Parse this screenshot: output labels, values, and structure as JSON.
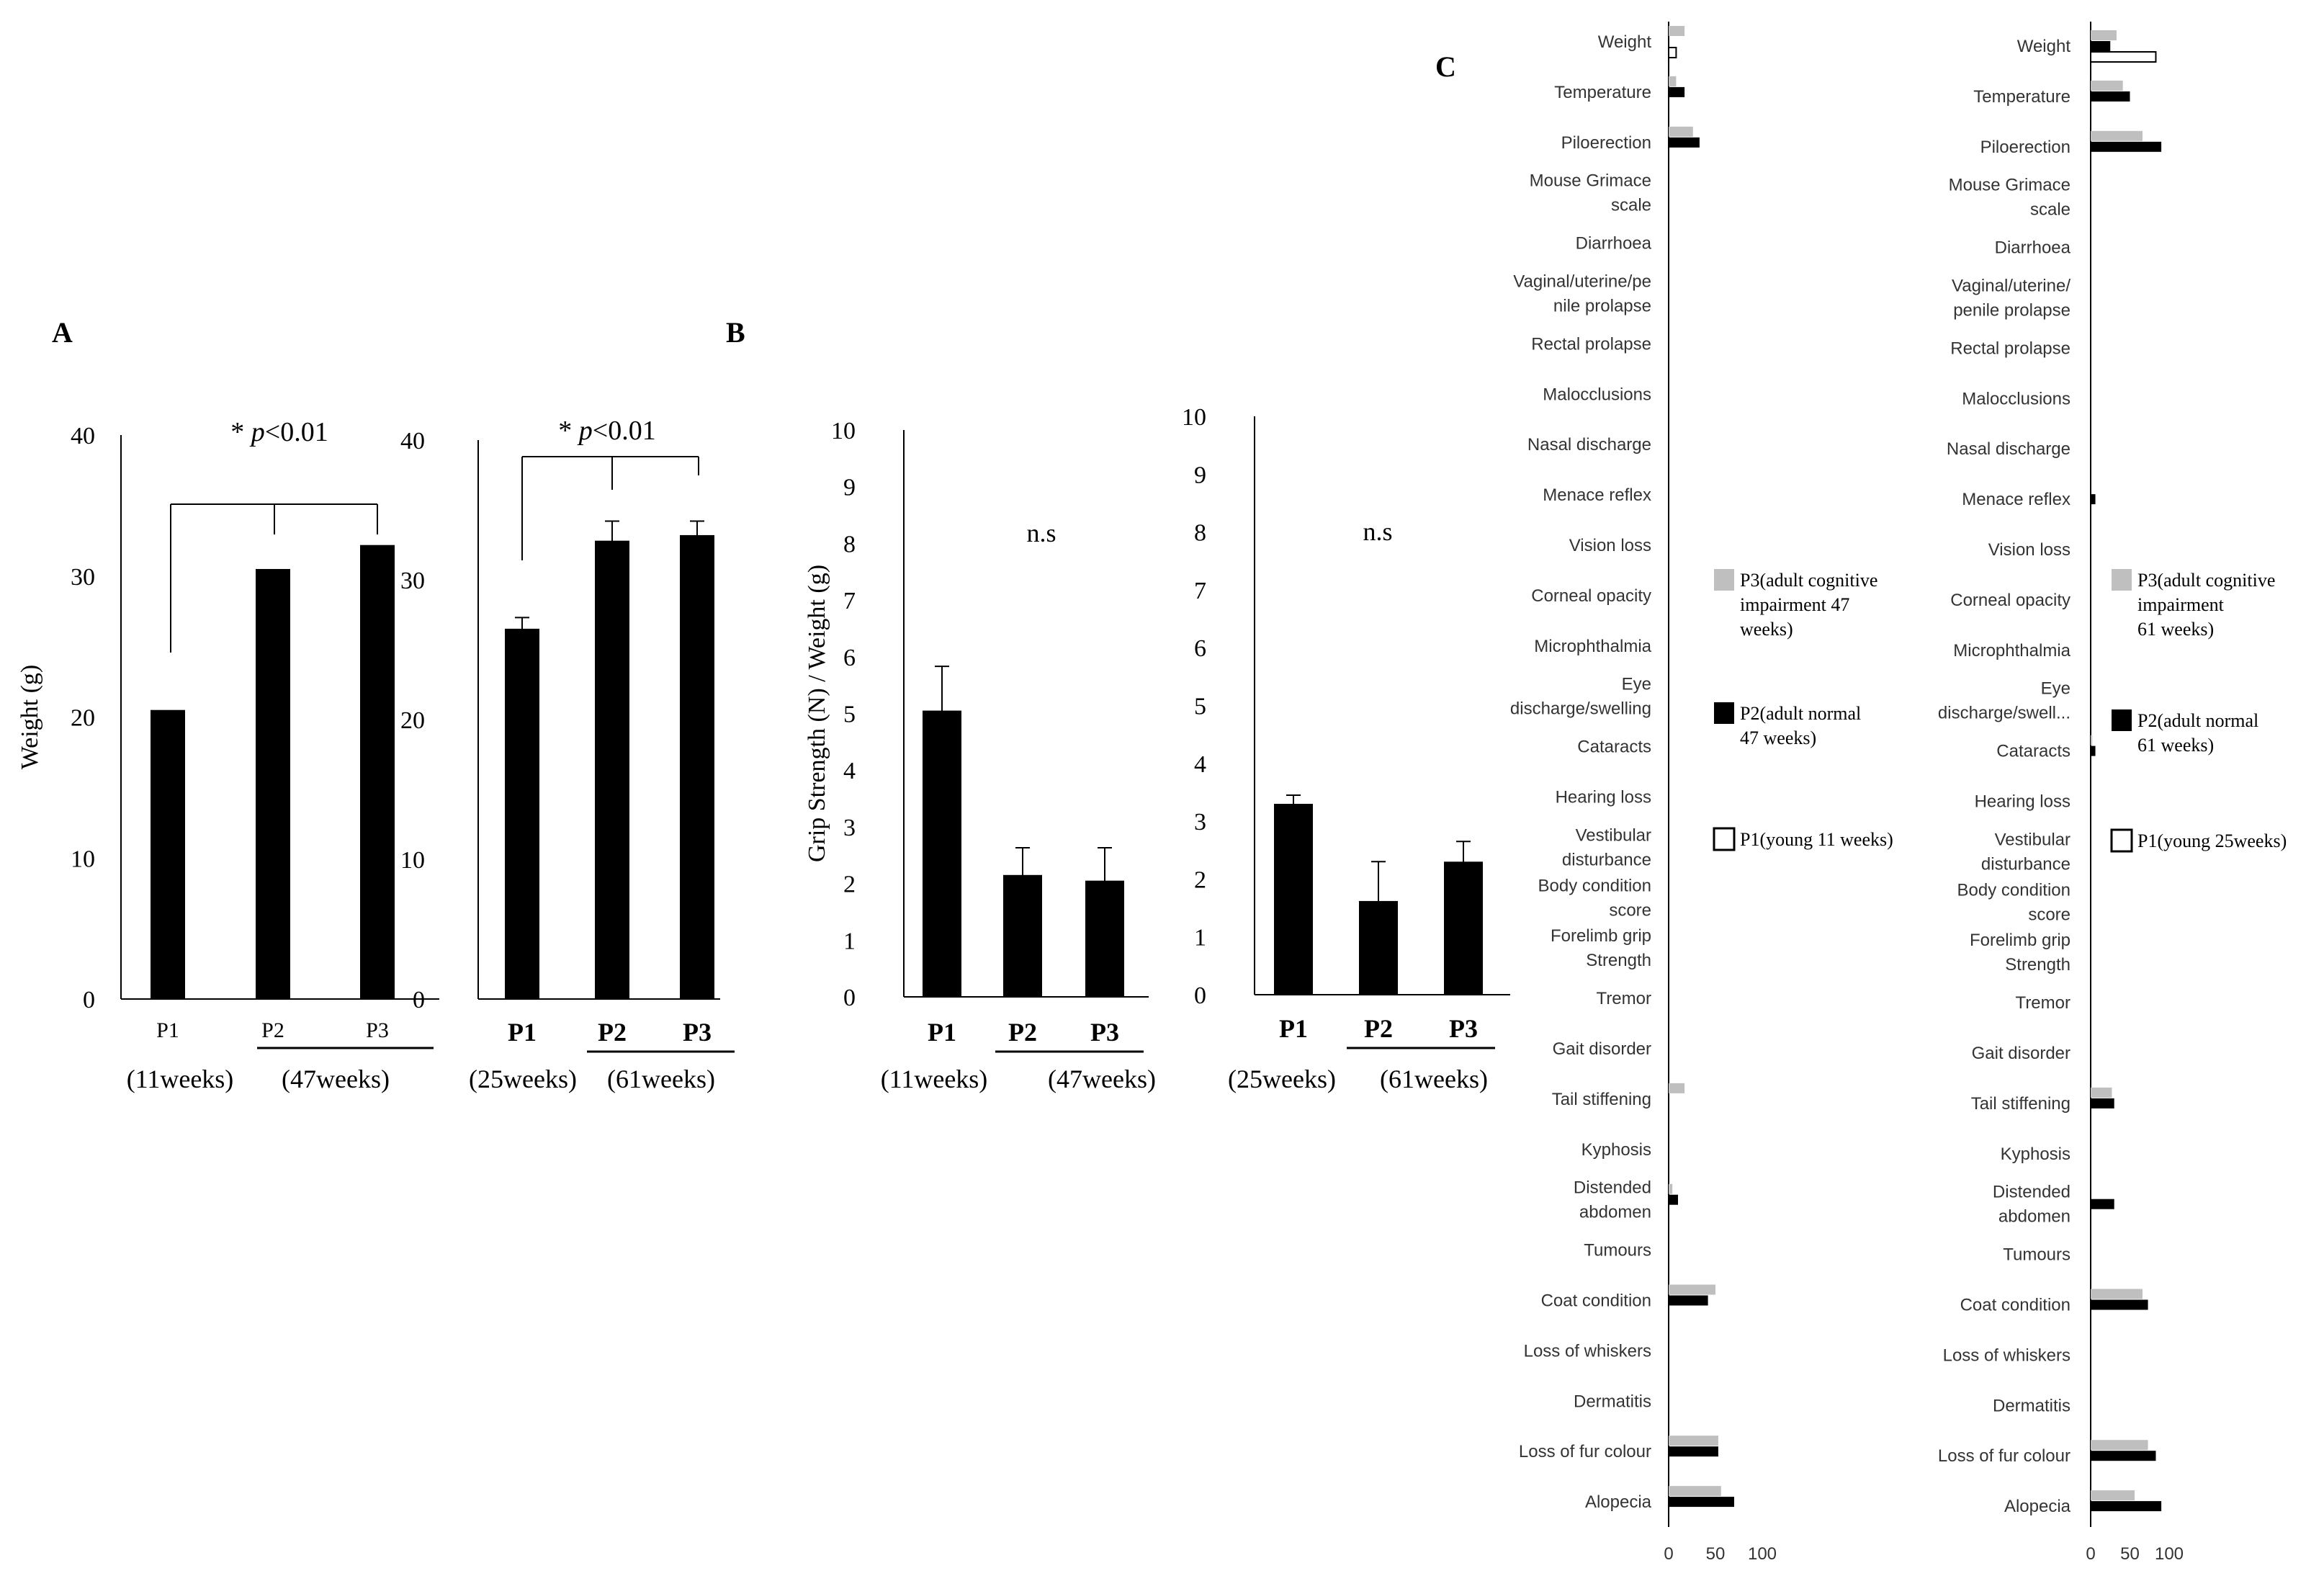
{
  "colors": {
    "p1": "#ffffff",
    "p2": "#000000",
    "p3": "#bfbfbf",
    "axis": "#000000",
    "sans_text": "#333333"
  },
  "panels": {
    "A": "A",
    "B": "B",
    "C": "C"
  },
  "chart_data": [
    {
      "id": "A-left",
      "type": "bar",
      "ylabel": "Weight (g)",
      "ylim": [
        0,
        40
      ],
      "yticks": [
        0,
        10,
        20,
        30,
        40
      ],
      "categories": [
        "P1",
        "P2",
        "P3"
      ],
      "values": [
        20.5,
        30.5,
        32.2
      ],
      "errors": [
        0,
        0,
        0
      ],
      "groups": [
        "(11weeks)",
        "(47weeks)"
      ],
      "annotation": {
        "star": "*",
        "p": "p",
        "rest": "<0.01"
      }
    },
    {
      "id": "A-right",
      "type": "bar",
      "ylim": [
        0,
        40
      ],
      "yticks": [
        0,
        10,
        20,
        30,
        40
      ],
      "categories": [
        "P1",
        "P2",
        "P3"
      ],
      "values": [
        26.5,
        32.8,
        33.2
      ],
      "errors": [
        0.8,
        1.4,
        1.0
      ],
      "groups": [
        "(25weeks)",
        "(61weeks)"
      ],
      "annotation": {
        "star": "*",
        "p": "p",
        "rest": "<0.01"
      }
    },
    {
      "id": "B-left",
      "type": "bar",
      "ylabel": "Grip Strength (N) / Weight (g)",
      "ylim": [
        0,
        10
      ],
      "yticks": [
        0,
        1,
        2,
        3,
        4,
        5,
        6,
        7,
        8,
        9,
        10
      ],
      "categories": [
        "P1",
        "P2",
        "P3"
      ],
      "values": [
        5.05,
        2.15,
        2.05
      ],
      "errors": [
        0.78,
        0.48,
        0.58
      ],
      "groups": [
        "(11weeks)",
        "(47weeks)"
      ],
      "annotation": {
        "text": "n.s"
      }
    },
    {
      "id": "B-right",
      "type": "bar",
      "ylim": [
        0,
        10
      ],
      "yticks": [
        0,
        1,
        2,
        3,
        4,
        5,
        6,
        7,
        8,
        9,
        10
      ],
      "categories": [
        "P1",
        "P2",
        "P3"
      ],
      "values": [
        3.3,
        1.62,
        2.3
      ],
      "errors": [
        0.15,
        0.68,
        0.35
      ],
      "groups": [
        "(25weeks)",
        "(61weeks)"
      ],
      "annotation": {
        "text": "n.s"
      }
    },
    {
      "id": "C-left",
      "type": "bar",
      "orientation": "horizontal",
      "xlim": [
        0,
        100
      ],
      "xticks": [
        0,
        50,
        100
      ],
      "categories": [
        [
          "Weight"
        ],
        [
          "Temperature"
        ],
        [
          "Piloerection"
        ],
        [
          "Mouse Grimace",
          "scale"
        ],
        [
          "Diarrhoea"
        ],
        [
          "Vaginal/uterine/pe",
          "nile prolapse"
        ],
        [
          "Rectal prolapse"
        ],
        [
          "Malocclusions"
        ],
        [
          "Nasal discharge"
        ],
        [
          "Menace reflex"
        ],
        [
          "Vision loss"
        ],
        [
          "Corneal opacity"
        ],
        [
          "Microphthalmia"
        ],
        [
          "Eye",
          "discharge/swelling"
        ],
        [
          "Cataracts"
        ],
        [
          "Hearing loss"
        ],
        [
          "Vestibular",
          "disturbance"
        ],
        [
          "Body condition",
          "score"
        ],
        [
          "Forelimb grip",
          "Strength"
        ],
        [
          "Tremor"
        ],
        [
          "Gait disorder"
        ],
        [
          "Tail stiffening"
        ],
        [
          "Kyphosis"
        ],
        [
          "Distended",
          "abdomen"
        ],
        [
          "Tumours"
        ],
        [
          "Coat condition"
        ],
        [
          "Loss of whiskers"
        ],
        [
          "Dermatitis"
        ],
        [
          "Loss of fur colour"
        ],
        [
          "Alopecia"
        ]
      ],
      "series": [
        {
          "name": "P3(adult cognitive impairment 47 weeks)",
          "legend_lines": [
            "P3(adult cognitive",
            "impairment 47",
            "weeks)"
          ],
          "color": "#bfbfbf",
          "values": [
            17,
            8,
            26,
            0,
            0,
            0,
            0,
            0,
            0,
            0,
            0,
            0,
            0,
            0,
            0,
            0,
            0,
            0,
            0,
            0,
            0,
            17,
            0,
            4,
            0,
            50,
            0,
            0,
            53,
            56
          ]
        },
        {
          "name": "P2(adult normal 47 weeks)",
          "legend_lines": [
            "P2(adult normal",
            "47 weeks)"
          ],
          "color": "#000000",
          "values": [
            0,
            17,
            33,
            0,
            0,
            0,
            0,
            0,
            0,
            0,
            0,
            0,
            0,
            0,
            0,
            0,
            0,
            0,
            0,
            0,
            0,
            0,
            0,
            10,
            0,
            42,
            0,
            0,
            53,
            70
          ]
        },
        {
          "name": "P1(young 11 weeks)",
          "legend_lines": [
            "P1(young 11 weeks)"
          ],
          "color": "#ffffff",
          "values": [
            8,
            0,
            0,
            0,
            0,
            0,
            0,
            0,
            0,
            0,
            0,
            0,
            0,
            0,
            0,
            0,
            0,
            0,
            0,
            0,
            0,
            0,
            0,
            0,
            0,
            0,
            0,
            0,
            0,
            0
          ]
        }
      ]
    },
    {
      "id": "C-right",
      "type": "bar",
      "orientation": "horizontal",
      "xlim": [
        0,
        100
      ],
      "xticks": [
        0,
        50,
        100
      ],
      "categories": [
        [
          "Weight"
        ],
        [
          "Temperature"
        ],
        [
          "Piloerection"
        ],
        [
          "Mouse Grimace",
          "scale"
        ],
        [
          "Diarrhoea"
        ],
        [
          "Vaginal/uterine/",
          "penile prolapse"
        ],
        [
          "Rectal prolapse"
        ],
        [
          "Malocclusions"
        ],
        [
          "Nasal discharge"
        ],
        [
          "Menace reflex"
        ],
        [
          "Vision loss"
        ],
        [
          "Corneal opacity"
        ],
        [
          "Microphthalmia"
        ],
        [
          "Eye",
          "discharge/swell..."
        ],
        [
          "Cataracts"
        ],
        [
          "Hearing loss"
        ],
        [
          "Vestibular",
          "disturbance"
        ],
        [
          "Body condition",
          "score"
        ],
        [
          "Forelimb grip",
          "Strength"
        ],
        [
          "Tremor"
        ],
        [
          "Gait disorder"
        ],
        [
          "Tail stiffening"
        ],
        [
          "Kyphosis"
        ],
        [
          "Distended",
          "abdomen"
        ],
        [
          "Tumours"
        ],
        [
          "Coat condition"
        ],
        [
          "Loss of whiskers"
        ],
        [
          "Dermatitis"
        ],
        [
          "Loss of fur colour"
        ],
        [
          "Alopecia"
        ]
      ],
      "series": [
        {
          "name": "P3(adult cognitive impairment 61 weeks)",
          "legend_lines": [
            "P3(adult cognitive",
            "impairment",
            "61 weeks)"
          ],
          "color": "#bfbfbf",
          "values": [
            33,
            41,
            66,
            0,
            0,
            0,
            0,
            0,
            0,
            0,
            0,
            0,
            0,
            0,
            2,
            0,
            0,
            0,
            0,
            0,
            0,
            27,
            0,
            0,
            0,
            66,
            0,
            0,
            73,
            56
          ]
        },
        {
          "name": "P2(adult normal 61 weeks)",
          "legend_lines": [
            "P2(adult normal",
            "61 weeks)"
          ],
          "color": "#000000",
          "values": [
            25,
            50,
            90,
            0,
            0,
            0,
            0,
            0,
            0,
            6,
            0,
            0,
            0,
            0,
            6,
            0,
            0,
            0,
            0,
            0,
            0,
            30,
            0,
            30,
            0,
            73,
            0,
            0,
            83,
            90
          ]
        },
        {
          "name": "P1(young 25weeks)",
          "legend_lines": [
            "P1(young 25weeks)"
          ],
          "color": "#ffffff",
          "values": [
            83,
            0,
            0,
            0,
            0,
            0,
            0,
            0,
            0,
            0,
            0,
            0,
            0,
            0,
            0,
            0,
            0,
            0,
            0,
            0,
            0,
            0,
            0,
            0,
            0,
            0,
            0,
            0,
            0,
            0
          ]
        }
      ]
    }
  ]
}
